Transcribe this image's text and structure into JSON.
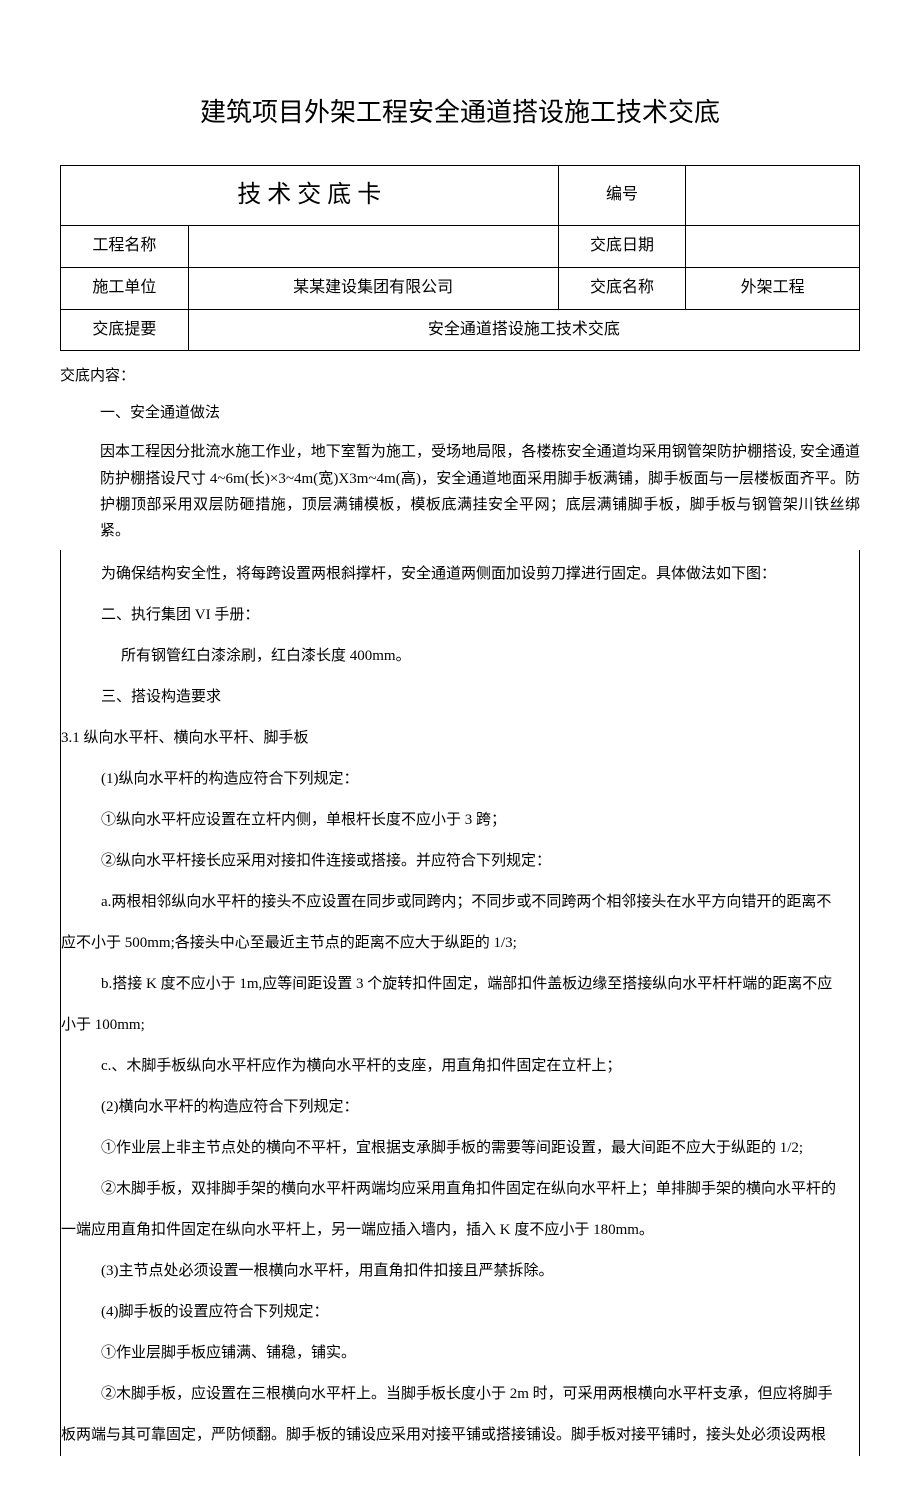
{
  "doc": {
    "title": "建筑项目外架工程安全通道搭设施工技术交底"
  },
  "table": {
    "card_title": "技 术 交 底 卡",
    "serial_label": "编号",
    "serial_value": "",
    "project_label": "工程名称",
    "project_value": "",
    "date_label": "交底日期",
    "date_value": "",
    "unit_label": "施工单位",
    "unit_value": "某某建设集团有限公司",
    "name_label": "交底名称",
    "name_value": "外架工程",
    "summary_label": "交底提要",
    "summary_value": "安全通道搭设施工技术交底"
  },
  "content": {
    "start": "交底内容：",
    "h1": "一、安全通道做法",
    "p1": "因本工程因分批流水施工作业，地下室暂为施工，受场地局限，各楼栋安全通道均采用钢管架防护棚搭设, 安全通道防护棚搭设尺寸 4~6m(长)×3~4m(宽)X3m~4m(高)，安全通道地面采用脚手板满铺，脚手板面与一层楼板面齐平。防护棚顶部采用双层防砸措施，顶层满铺模板，模板底满挂安全平网；底层满铺脚手板，脚手板与钢管架川铁丝绑紧。",
    "p2": "为确保结构安全性，将每跨设置两根斜撑杆，安全通道两侧面加设剪刀撑进行固定。具体做法如下图：",
    "h2": "二、执行集团 VI 手册：",
    "p3": "所有钢管红白漆涂刷，红白漆长度 400mm。",
    "h3": "三、搭设构造要求",
    "s31": "3.1 纵向水平杆、横向水平杆、脚手板",
    "p31_1": "(1)纵向水平杆的构造应符合下列规定：",
    "p31_1a": "①纵向水平杆应设置在立杆内侧，单根杆长度不应小于 3 跨；",
    "p31_1b": "②纵向水平杆接长应采用对接扣件连接或搭接。并应符合下列规定：",
    "p31_1b_a": "a.两根相邻纵向水平杆的接头不应设置在同步或同跨内；不同步或不同跨两个相邻接头在水平方向错开的距离不",
    "p31_1b_a2": "应不小于 500mm;各接头中心至最近主节点的距离不应大于纵距的 1/3;",
    "p31_1b_b": "b.搭接 K 度不应小于 1m,应等间距设置 3 个旋转扣件固定，端部扣件盖板边缘至搭接纵向水平杆杆端的距离不应",
    "p31_1b_b2": "小于 100mm;",
    "p31_1b_c": "c.、木脚手板纵向水平杆应作为横向水平杆的支座，用直角扣件固定在立杆上；",
    "p31_2": "(2)横向水平杆的构造应符合下列规定：",
    "p31_2a": "①作业层上非主节点处的横向不平杆，宜根据支承脚手板的需要等间距设置，最大间距不应大于纵距的 1/2;",
    "p31_2b": "②木脚手板，双排脚手架的横向水平杆两端均应采用直角扣件固定在纵向水平杆上；单排脚手架的横向水平杆的",
    "p31_2b2": "一端应用直角扣件固定在纵向水平杆上，另一端应插入墙内，插入 K 度不应小于 180mm。",
    "p31_3": "(3)主节点处必须设置一根横向水平杆，用直角扣件扣接且严禁拆除。",
    "p31_4": "(4)脚手板的设置应符合下列规定：",
    "p31_4a": "①作业层脚手板应铺满、铺稳，铺实。",
    "p31_4b": "②木脚手板，应设置在三根横向水平杆上。当脚手板长度小于 2m 时，可采用两根横向水平杆支承，但应将脚手",
    "p31_4b2": "板两端与其可靠固定，严防倾翻。脚手板的铺设应采用对接平铺或搭接铺设。脚手板对接平铺时，接头处必须设两根"
  }
}
